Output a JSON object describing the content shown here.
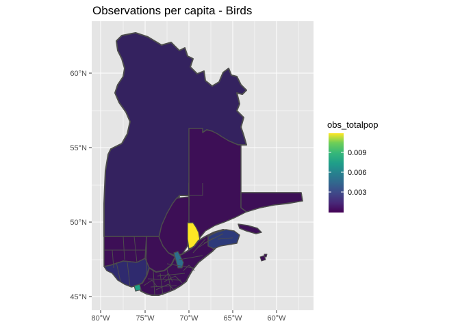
{
  "title": "Observations per capita - Birds",
  "colors": {
    "panel_background": "#e5e5e5",
    "grid_line": "#ffffff",
    "border": "#4d4d4d",
    "province_fill": "#34225f",
    "low_fill": "#3d0f56",
    "high_fill": "#fde725",
    "accent_teal": "#1fa187",
    "mid_blue": "#2d6e8e"
  },
  "x_axis": {
    "ticks": [
      "80°W",
      "75°W",
      "70°W",
      "65°W",
      "60°W"
    ]
  },
  "y_axis": {
    "ticks": [
      "60°N",
      "55°N",
      "50°N",
      "45°N"
    ]
  },
  "legend": {
    "title": "obs_totalpop",
    "scale": "viridis",
    "range": [
      0,
      0.0101
    ],
    "ticks": [
      "0.009",
      "0.006",
      "0.003"
    ]
  }
}
